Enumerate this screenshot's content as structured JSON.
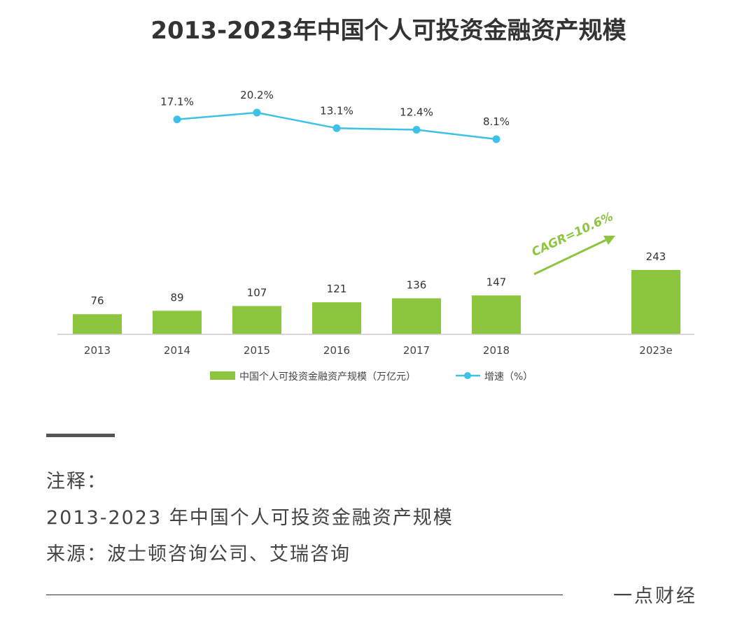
{
  "chart_data": {
    "type": "bar",
    "title": "2013-2023年中国个人可投资金融资产规模",
    "categories": [
      "2013",
      "2014",
      "2015",
      "2016",
      "2017",
      "2018",
      "2023e"
    ],
    "series": [
      {
        "name": "中国个人可投资金融资产规模（万亿元）",
        "type": "bar",
        "values": [
          76,
          89,
          107,
          121,
          136,
          147,
          243
        ],
        "labels": [
          "76",
          "89",
          "107",
          "121",
          "136",
          "147",
          "243"
        ],
        "color": "#8cc63f"
      },
      {
        "name": "增速（%）",
        "type": "line",
        "values": [
          null,
          17.1,
          20.2,
          13.1,
          12.4,
          8.1,
          null
        ],
        "labels": [
          "",
          "17.1%",
          "20.2%",
          "13.1%",
          "12.4%",
          "8.1%",
          ""
        ],
        "color": "#3ec1e6"
      }
    ],
    "annotation": "CAGR=10.6%",
    "legend_position": "bottom",
    "grid": false
  },
  "notes": {
    "heading": "注释：",
    "line1": "2013-2023 年中国个人可投资金融资产规模",
    "line2": "来源：波士顿咨询公司、艾瑞咨询"
  },
  "footer": {
    "brand": "一点财经"
  }
}
